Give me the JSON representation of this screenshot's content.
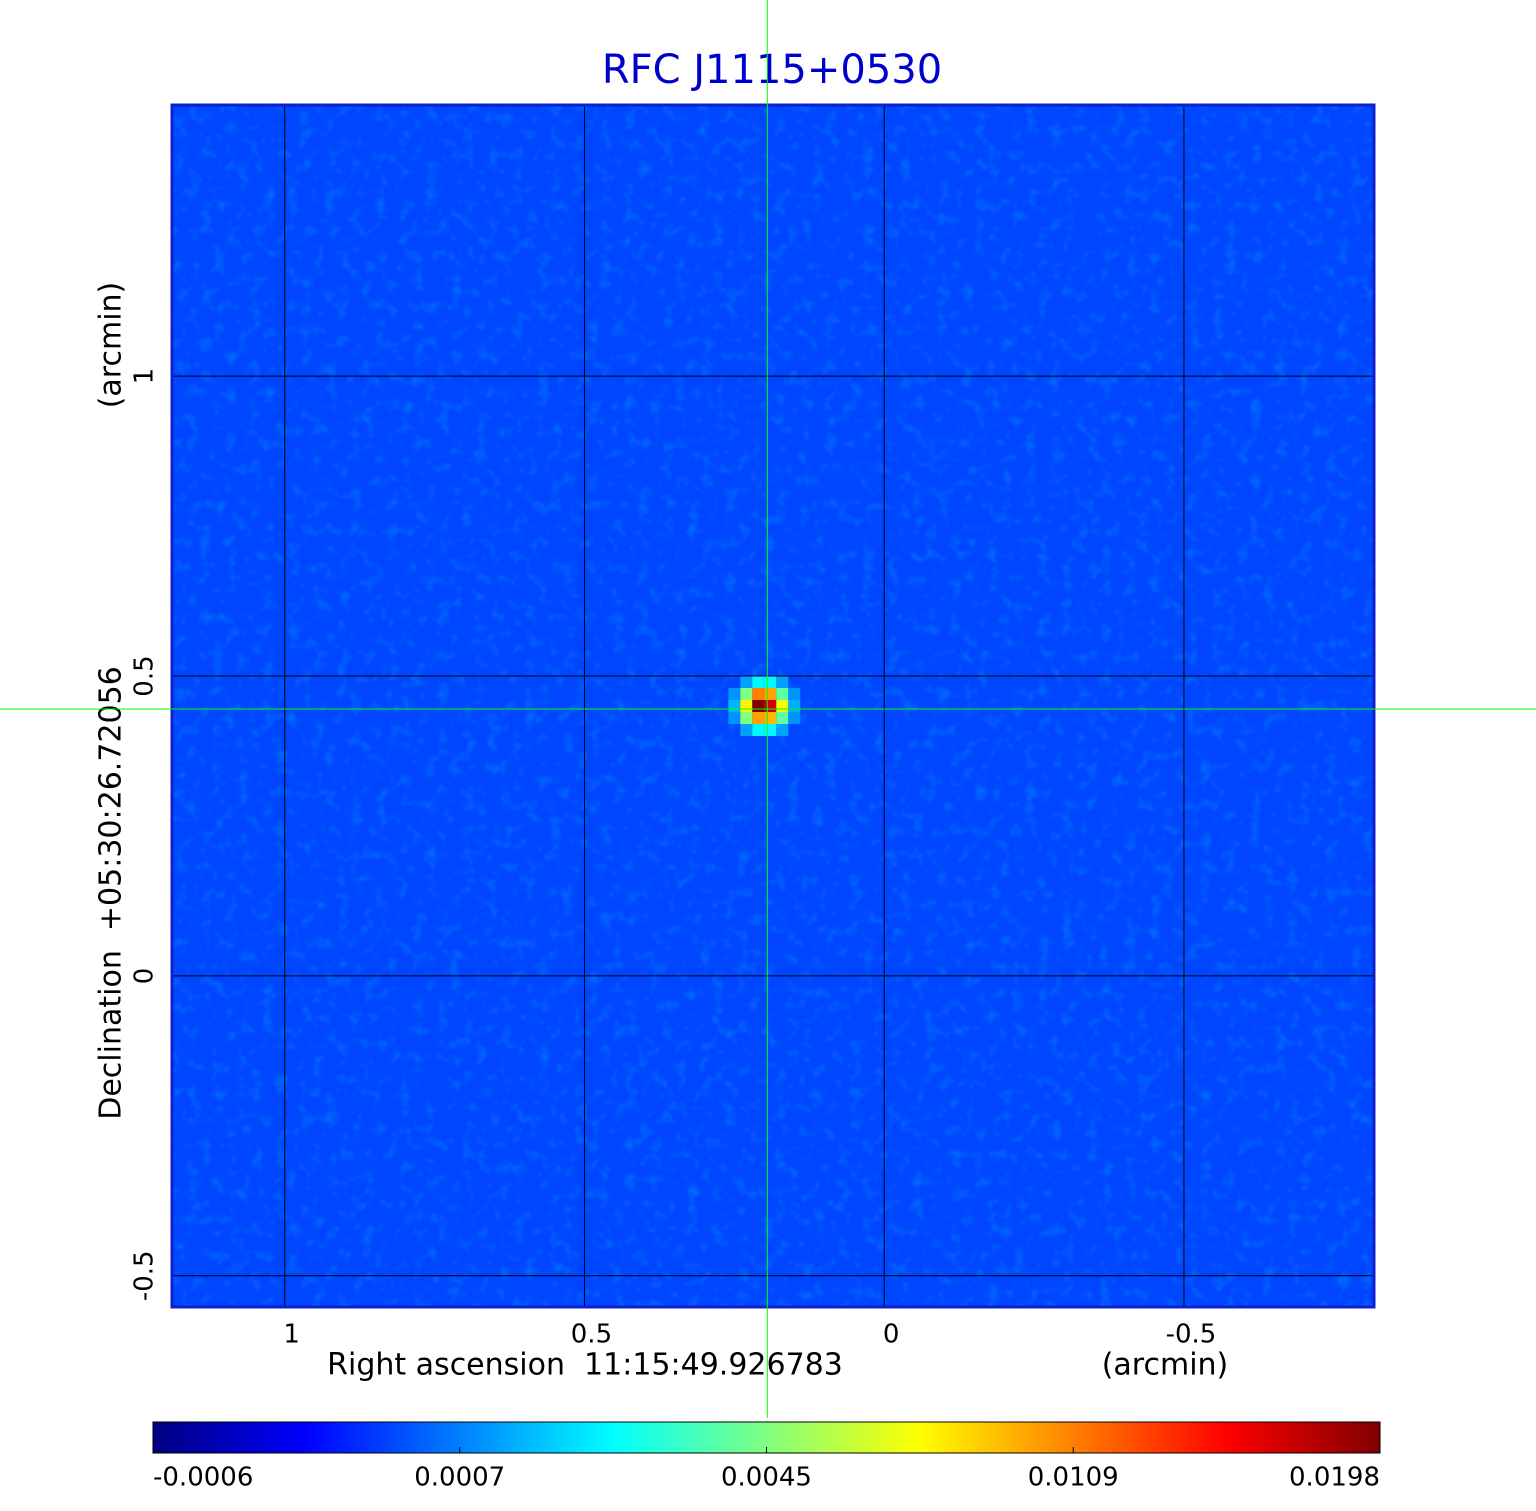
{
  "chart_data": {
    "type": "image",
    "title": "RFC J1115+0530",
    "x_label": "Right ascension  11:15:49.926783",
    "x_unit": "(arcmin)",
    "y_label": "Declination  +05:30:26.72056",
    "y_unit": "(arcmin)",
    "xlim": [
      1.188,
      -0.817
    ],
    "ylim": [
      -0.552,
      1.452
    ],
    "xticks": [
      1.0,
      0.5,
      0.0,
      -0.5
    ],
    "yticks": [
      1.0,
      0.5,
      0.0,
      -0.5
    ],
    "grid": true,
    "colormap": "jet",
    "background": 0.0004,
    "pixel_size": 0.02,
    "pixels": {
      "x": [
        0.23,
        0.21,
        0.19,
        0.17,
        0.25,
        0.23,
        0.21,
        0.19,
        0.17,
        0.15,
        0.25,
        0.23,
        0.21,
        0.19,
        0.17,
        0.15,
        0.25,
        0.23,
        0.21,
        0.19,
        0.17,
        0.15,
        0.23,
        0.21,
        0.19,
        0.17
      ],
      "y": [
        0.49,
        0.49,
        0.49,
        0.49,
        0.47,
        0.47,
        0.47,
        0.47,
        0.47,
        0.47,
        0.45,
        0.45,
        0.45,
        0.45,
        0.45,
        0.45,
        0.43,
        0.43,
        0.43,
        0.43,
        0.43,
        0.43,
        0.41,
        0.41,
        0.41,
        0.41
      ],
      "values": [
        0.0012,
        0.0025,
        0.0025,
        0.0012,
        0.001,
        0.0045,
        0.0109,
        0.01,
        0.004,
        0.001,
        0.0015,
        0.008,
        0.0198,
        0.017,
        0.0075,
        0.0014,
        0.001,
        0.0045,
        0.01,
        0.0095,
        0.004,
        0.001,
        0.0012,
        0.0025,
        0.0025,
        0.0012
      ]
    },
    "crosshair": {
      "x": 0.195,
      "y": 0.445,
      "color": "#00ff00"
    },
    "colorbar_ticks": [
      -0.0006,
      0.0007,
      0.0045,
      0.0109,
      0.0198
    ],
    "title_color": "#0000cc",
    "frame_color": "#1020d0"
  }
}
